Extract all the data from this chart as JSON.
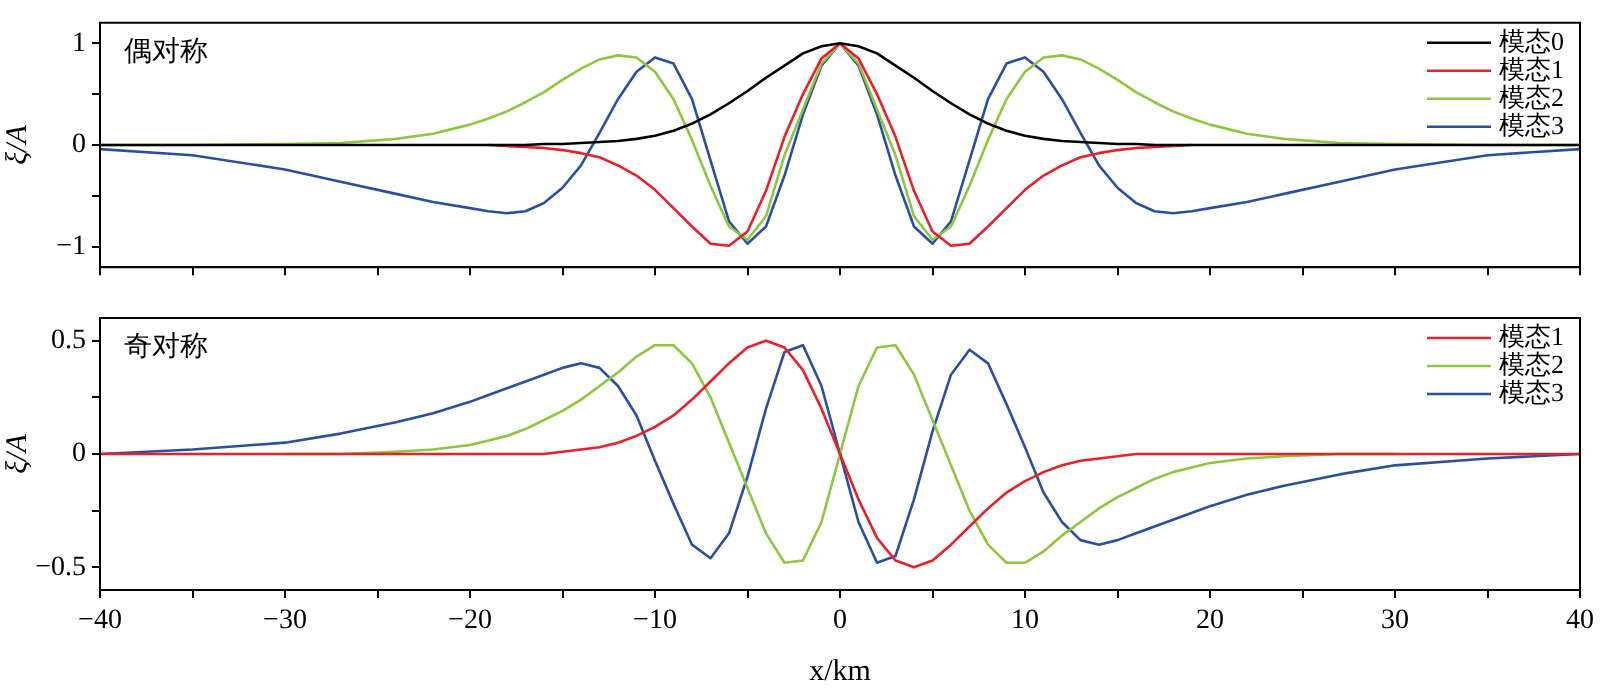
{
  "chart_data": [
    {
      "type": "line",
      "ylabel": "ξ/A",
      "annotations": [
        "偶对称"
      ],
      "legend": "top right",
      "marker": "none",
      "grid": false,
      "tick_labels": "y",
      "xlim": [
        -40,
        40
      ],
      "xticks": [
        {
          "value": -40,
          "label": null
        },
        {
          "value": -35,
          "label": null
        },
        {
          "value": -30,
          "label": null
        },
        {
          "value": -25,
          "label": null
        },
        {
          "value": -20,
          "label": null
        },
        {
          "value": -15,
          "label": null
        },
        {
          "value": -10,
          "label": null
        },
        {
          "value": -5,
          "label": null
        },
        {
          "value": 0,
          "label": null
        },
        {
          "value": 5,
          "label": null
        },
        {
          "value": 10,
          "label": null
        },
        {
          "value": 15,
          "label": null
        },
        {
          "value": 20,
          "label": null
        },
        {
          "value": 25,
          "label": null
        },
        {
          "value": 30,
          "label": null
        },
        {
          "value": 35,
          "label": null
        },
        {
          "value": 40,
          "label": null
        }
      ],
      "ylim": [
        -1.2,
        1.2
      ],
      "yticks": [
        {
          "value": -1,
          "label": "−1"
        },
        {
          "value": -0.5,
          "label": null
        },
        0,
        {
          "value": 0.5,
          "label": null
        },
        1
      ],
      "x": [
        -40,
        -35,
        -30,
        -27,
        -24,
        -22,
        -20,
        -19,
        -18,
        -17,
        -16,
        -15,
        -14,
        -13,
        -12,
        -11,
        -10,
        -9,
        -8,
        -7,
        -6,
        -5,
        -4,
        -3,
        -2,
        -1,
        0,
        1,
        2,
        3,
        4,
        5,
        6,
        7,
        8,
        9,
        10,
        11,
        12,
        13,
        14,
        15,
        16,
        17,
        18,
        19,
        20,
        22,
        24,
        27,
        30,
        35,
        40
      ],
      "series": [
        {
          "name": "模态0",
          "color": "#000000",
          "values": [
            0,
            0,
            0,
            0,
            0,
            0,
            0,
            0,
            0,
            0,
            0.01,
            0.01,
            0.02,
            0.03,
            0.04,
            0.06,
            0.09,
            0.14,
            0.21,
            0.3,
            0.41,
            0.53,
            0.66,
            0.78,
            0.9,
            0.97,
            1,
            0.97,
            0.9,
            0.78,
            0.66,
            0.53,
            0.41,
            0.3,
            0.21,
            0.14,
            0.09,
            0.06,
            0.04,
            0.03,
            0.02,
            0.01,
            0.01,
            0,
            0,
            0,
            0,
            0,
            0,
            0,
            0,
            0,
            0
          ]
        },
        {
          "name": "模态1",
          "color": "#e8202a",
          "values": [
            null,
            null,
            null,
            null,
            null,
            null,
            null,
            0,
            -0.01,
            -0.02,
            -0.03,
            -0.05,
            -0.08,
            -0.12,
            -0.2,
            -0.3,
            -0.44,
            -0.62,
            -0.8,
            -0.97,
            -0.99,
            -0.85,
            -0.45,
            0.08,
            0.5,
            0.85,
            1,
            0.85,
            0.5,
            0.08,
            -0.45,
            -0.85,
            -0.99,
            -0.97,
            -0.8,
            -0.62,
            -0.44,
            -0.3,
            -0.2,
            -0.12,
            -0.08,
            -0.05,
            -0.03,
            -0.02,
            -0.01,
            0,
            null,
            null,
            null,
            null,
            null,
            null,
            null
          ]
        },
        {
          "name": "模态2",
          "color": "#8dc63f",
          "values": [
            0,
            0,
            0.01,
            0.02,
            0.06,
            0.11,
            0.2,
            0.26,
            0.33,
            0.42,
            0.52,
            0.64,
            0.75,
            0.84,
            0.88,
            0.86,
            0.72,
            0.45,
            0.05,
            -0.4,
            -0.8,
            -0.93,
            -0.7,
            -0.1,
            0.35,
            0.8,
            1,
            0.8,
            0.35,
            -0.1,
            -0.7,
            -0.93,
            -0.8,
            -0.4,
            0.05,
            0.45,
            0.72,
            0.86,
            0.88,
            0.84,
            0.75,
            0.64,
            0.52,
            0.42,
            0.33,
            0.26,
            0.2,
            0.11,
            0.06,
            0.02,
            0.01,
            0,
            0
          ]
        },
        {
          "name": "模态3",
          "color": "#2b4fa0",
          "values": [
            -0.04,
            -0.1,
            -0.24,
            -0.36,
            -0.48,
            -0.56,
            -0.62,
            -0.65,
            -0.67,
            -0.65,
            -0.57,
            -0.42,
            -0.2,
            0.12,
            0.45,
            0.72,
            0.86,
            0.8,
            0.45,
            -0.15,
            -0.75,
            -0.97,
            -0.8,
            -0.3,
            0.3,
            0.78,
            1,
            0.78,
            0.3,
            -0.3,
            -0.8,
            -0.97,
            -0.75,
            -0.15,
            0.45,
            0.8,
            0.86,
            0.72,
            0.45,
            0.12,
            -0.2,
            -0.42,
            -0.57,
            -0.65,
            -0.67,
            -0.65,
            -0.62,
            -0.56,
            -0.48,
            -0.36,
            -0.24,
            -0.1,
            -0.04
          ]
        }
      ]
    },
    {
      "type": "line",
      "xlabel": "x/km",
      "ylabel": "ξ/A",
      "annotations": [
        "奇对称"
      ],
      "legend": "top right",
      "marker": "none",
      "grid": false,
      "xlim": [
        -40,
        40
      ],
      "xticks": [
        {
          "value": -40,
          "label": "−40"
        },
        {
          "value": -35,
          "label": null
        },
        {
          "value": -30,
          "label": "−30"
        },
        {
          "value": -25,
          "label": null
        },
        {
          "value": -20,
          "label": "−20"
        },
        {
          "value": -15,
          "label": null
        },
        {
          "value": -10,
          "label": "−10"
        },
        {
          "value": -5,
          "label": null
        },
        0,
        {
          "value": 5,
          "label": null
        },
        10,
        {
          "value": 15,
          "label": null
        },
        20,
        {
          "value": 25,
          "label": null
        },
        30,
        {
          "value": 35,
          "label": null
        },
        40
      ],
      "ylim": [
        -0.6,
        0.6
      ],
      "yticks": [
        {
          "value": -0.5,
          "label": "−0.5"
        },
        {
          "value": -0.25,
          "label": null
        },
        0,
        {
          "value": 0.25,
          "label": null
        },
        0.5
      ],
      "x": [
        -40,
        -35,
        -30,
        -27,
        -24,
        -22,
        -20,
        -19,
        -18,
        -17,
        -16,
        -15,
        -14,
        -13,
        -12,
        -11,
        -10,
        -9,
        -8,
        -7,
        -6,
        -5,
        -4,
        -3,
        -2,
        -1,
        0,
        1,
        2,
        3,
        4,
        5,
        6,
        7,
        8,
        9,
        10,
        11,
        12,
        13,
        14,
        15,
        16,
        17,
        18,
        19,
        20,
        22,
        24,
        27,
        30,
        35,
        40
      ],
      "series": [
        {
          "name": "模态1",
          "color": "#e8202a",
          "values": [
            0,
            0,
            0,
            0,
            0,
            0,
            0,
            0,
            0,
            0,
            0,
            0.01,
            0.02,
            0.03,
            0.05,
            0.08,
            0.12,
            0.17,
            0.24,
            0.32,
            0.4,
            0.47,
            0.5,
            0.47,
            0.37,
            0.2,
            0,
            -0.2,
            -0.37,
            -0.47,
            -0.5,
            -0.47,
            -0.4,
            -0.32,
            -0.24,
            -0.17,
            -0.12,
            -0.08,
            -0.05,
            -0.03,
            -0.02,
            -0.01,
            0,
            0,
            0,
            0,
            0,
            0,
            0,
            0,
            0,
            0,
            0
          ]
        },
        {
          "name": "模态2",
          "color": "#8dc63f",
          "values": [
            null,
            null,
            0,
            0,
            0.01,
            0.02,
            0.04,
            0.06,
            0.08,
            0.11,
            0.15,
            0.19,
            0.24,
            0.3,
            0.36,
            0.43,
            0.48,
            0.48,
            0.4,
            0.25,
            0.05,
            -0.15,
            -0.35,
            -0.48,
            -0.47,
            -0.3,
            0,
            0.3,
            0.47,
            0.48,
            0.35,
            0.15,
            -0.05,
            -0.25,
            -0.4,
            -0.48,
            -0.48,
            -0.43,
            -0.36,
            -0.3,
            -0.24,
            -0.19,
            -0.15,
            -0.11,
            -0.08,
            -0.06,
            -0.04,
            -0.02,
            -0.01,
            0,
            0,
            null,
            null
          ]
        },
        {
          "name": "模态3",
          "color": "#2b4fa0",
          "values": [
            0,
            0.02,
            0.05,
            0.09,
            0.14,
            0.18,
            0.23,
            0.26,
            0.29,
            0.32,
            0.35,
            0.38,
            0.4,
            0.38,
            0.3,
            0.17,
            -0.03,
            -0.22,
            -0.4,
            -0.46,
            -0.35,
            -0.1,
            0.2,
            0.45,
            0.48,
            0.3,
            0,
            -0.3,
            -0.48,
            -0.45,
            -0.2,
            0.1,
            0.35,
            0.46,
            0.4,
            0.22,
            0.03,
            -0.17,
            -0.3,
            -0.38,
            -0.4,
            -0.38,
            -0.35,
            -0.32,
            -0.29,
            -0.26,
            -0.23,
            -0.18,
            -0.14,
            -0.09,
            -0.05,
            -0.02,
            0
          ]
        }
      ]
    }
  ]
}
